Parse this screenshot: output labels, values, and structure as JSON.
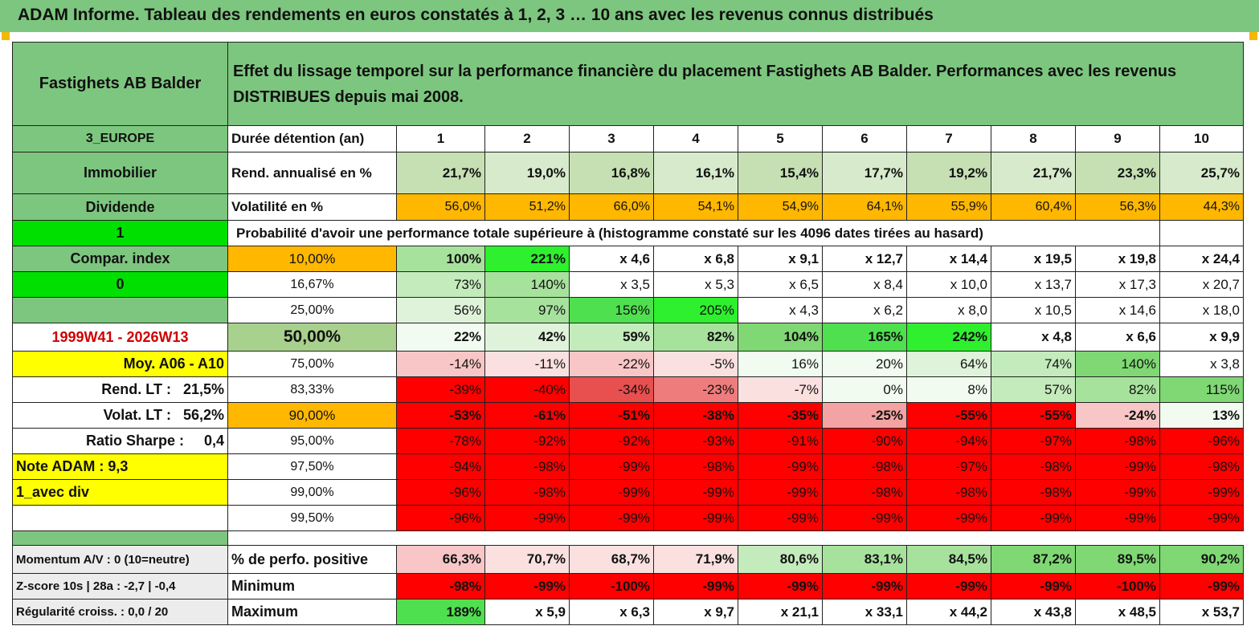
{
  "title": "ADAM Informe. Tableau des rendements en euros constatés à 1, 2, 3 … 10 ans avec les revenus connus distribués",
  "fund_name": "Fastighets AB Balder",
  "description": "Effet du lissage temporel sur la performance financière du placement Fastighets AB Balder. Performances avec les revenus DISTRIBUES depuis mai 2008.",
  "region": "3_EUROPE",
  "sector": "Immobilier",
  "income_type": "Dividende",
  "flag_1": "1",
  "compar_index": "Compar. index",
  "flag_0": "0",
  "period": "1999W41 - 2026W13",
  "moy": "Moy. A06 - A10",
  "rend_lt": "Rend. LT :   21,5%",
  "volat_lt": "Volat. LT :   56,2%",
  "ratio_sharpe": "Ratio Sharpe :     0,4",
  "note_adam": "Note ADAM : 9,3",
  "avec_div": "1_avec div",
  "momentum": "Momentum A/V : 0 (10=neutre)",
  "zscore": "Z-score 10s | 28a : -2,7 | -0,4",
  "regularite": "Régularité croiss. : 0,0 / 20",
  "header_label": "Durée détention (an)",
  "years": [
    "1",
    "2",
    "3",
    "4",
    "5",
    "6",
    "7",
    "8",
    "9",
    "10"
  ],
  "rend_label": "Rend. annualisé en %",
  "rend": [
    "21,7%",
    "19,0%",
    "16,8%",
    "16,1%",
    "15,4%",
    "17,7%",
    "19,2%",
    "21,7%",
    "23,3%",
    "25,7%"
  ],
  "vol_label": "Volatilité en %",
  "vol": [
    "56,0%",
    "51,2%",
    "66,0%",
    "54,1%",
    "54,9%",
    "64,1%",
    "55,9%",
    "60,4%",
    "56,3%",
    "44,3%"
  ],
  "prob_title": "Probabilité d'avoir une performance totale supérieure à (histogramme constaté sur les 4096 dates tirées au hasard)",
  "prob_rows": [
    {
      "p": "10,00%",
      "v": [
        "100%",
        "221%",
        "x 4,6",
        "x 6,8",
        "x 9,1",
        "x 12,7",
        "x 14,4",
        "x 19,5",
        "x 19,8",
        "x 24,4"
      ]
    },
    {
      "p": "16,67%",
      "v": [
        "73%",
        "140%",
        "x 3,5",
        "x 5,3",
        "x 6,5",
        "x 8,4",
        "x 10,0",
        "x 13,7",
        "x 17,3",
        "x 20,7"
      ]
    },
    {
      "p": "25,00%",
      "v": [
        "56%",
        "97%",
        "156%",
        "205%",
        "x 4,3",
        "x 6,2",
        "x 8,0",
        "x 10,5",
        "x 14,6",
        "x 18,0"
      ]
    },
    {
      "p": "50,00%",
      "v": [
        "22%",
        "42%",
        "59%",
        "82%",
        "104%",
        "165%",
        "242%",
        "x 4,8",
        "x 6,6",
        "x 9,9"
      ]
    },
    {
      "p": "75,00%",
      "v": [
        "-14%",
        "-11%",
        "-22%",
        "-5%",
        "16%",
        "20%",
        "64%",
        "74%",
        "140%",
        "x 3,8"
      ]
    },
    {
      "p": "83,33%",
      "v": [
        "-39%",
        "-40%",
        "-34%",
        "-23%",
        "-7%",
        "0%",
        "8%",
        "57%",
        "82%",
        "115%"
      ]
    },
    {
      "p": "90,00%",
      "v": [
        "-53%",
        "-61%",
        "-51%",
        "-38%",
        "-35%",
        "-25%",
        "-55%",
        "-55%",
        "-24%",
        "13%"
      ]
    },
    {
      "p": "95,00%",
      "v": [
        "-78%",
        "-92%",
        "-92%",
        "-93%",
        "-91%",
        "-90%",
        "-94%",
        "-97%",
        "-98%",
        "-96%"
      ]
    },
    {
      "p": "97,50%",
      "v": [
        "-94%",
        "-98%",
        "-99%",
        "-98%",
        "-99%",
        "-98%",
        "-97%",
        "-98%",
        "-99%",
        "-98%"
      ]
    },
    {
      "p": "99,00%",
      "v": [
        "-96%",
        "-98%",
        "-99%",
        "-99%",
        "-99%",
        "-98%",
        "-98%",
        "-98%",
        "-99%",
        "-99%"
      ]
    },
    {
      "p": "99,50%",
      "v": [
        "-96%",
        "-99%",
        "-99%",
        "-99%",
        "-99%",
        "-99%",
        "-99%",
        "-99%",
        "-99%",
        "-99%"
      ]
    }
  ],
  "pos_label": "% de perfo. positive",
  "pos": [
    "66,3%",
    "70,7%",
    "68,7%",
    "71,9%",
    "80,6%",
    "83,1%",
    "84,5%",
    "87,2%",
    "89,5%",
    "90,2%"
  ],
  "min_label": "Minimum",
  "min": [
    "-98%",
    "-99%",
    "-100%",
    "-99%",
    "-99%",
    "-99%",
    "-99%",
    "-99%",
    "-100%",
    "-99%"
  ],
  "max_label": "Maximum",
  "max": [
    "189%",
    "x 5,9",
    "x 6,3",
    "x 9,7",
    "x 21,1",
    "x 33,1",
    "x 44,2",
    "x 43,8",
    "x 48,5",
    "x 53,7"
  ],
  "colors": {
    "header_green": "#7dc67f",
    "bright_green": "#00e000",
    "yellow": "#ffff00",
    "orange": "#ffb700",
    "red": "#ff0000",
    "light_green": "#c6e0b4",
    "mid_green": "#9bd28d"
  }
}
